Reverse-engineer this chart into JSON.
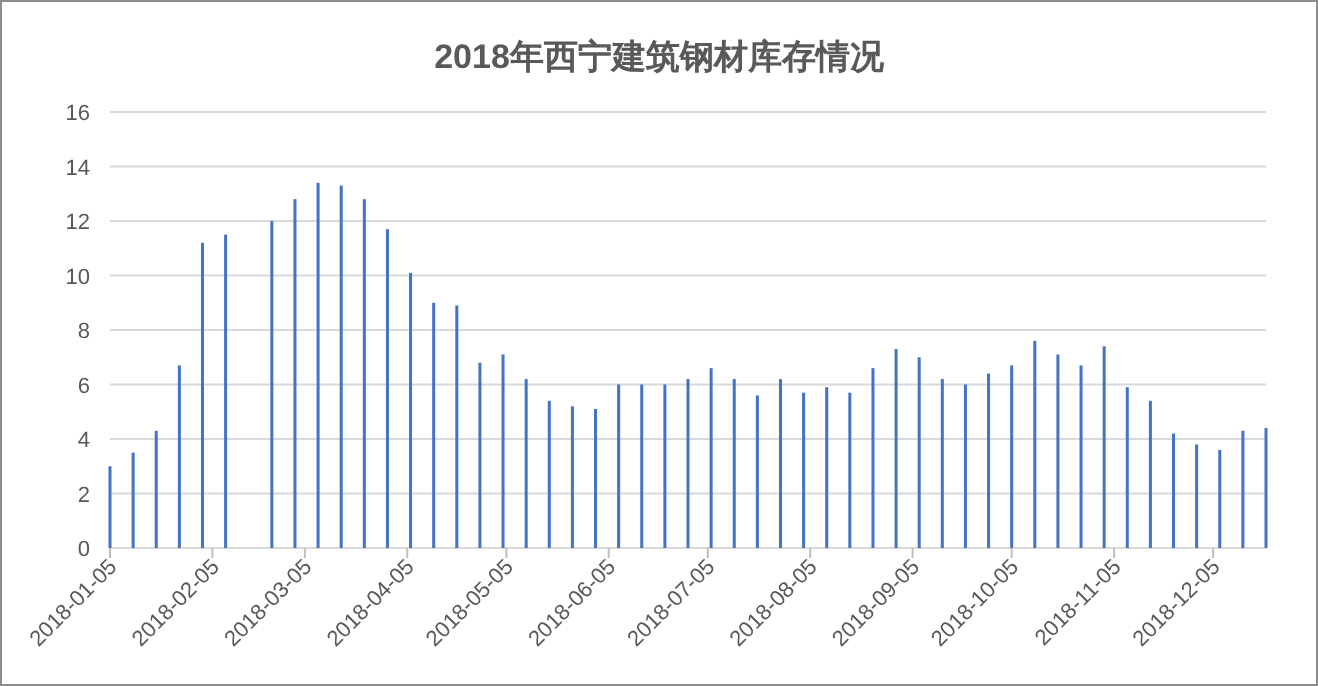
{
  "chart_data": {
    "type": "bar",
    "title": "2018年西宁建筑钢材库存情况",
    "x": [
      "2018-01-05",
      "2018-01-12",
      "2018-01-19",
      "2018-01-26",
      "2018-02-02",
      "2018-02-09",
      "2018-02-23",
      "2018-03-02",
      "2018-03-09",
      "2018-03-16",
      "2018-03-23",
      "2018-03-30",
      "2018-04-06",
      "2018-04-13",
      "2018-04-20",
      "2018-04-27",
      "2018-05-04",
      "2018-05-11",
      "2018-05-18",
      "2018-05-25",
      "2018-06-01",
      "2018-06-08",
      "2018-06-15",
      "2018-06-22",
      "2018-06-29",
      "2018-07-06",
      "2018-07-13",
      "2018-07-20",
      "2018-07-27",
      "2018-08-03",
      "2018-08-10",
      "2018-08-17",
      "2018-08-24",
      "2018-08-31",
      "2018-09-07",
      "2018-09-14",
      "2018-09-21",
      "2018-09-28",
      "2018-10-05",
      "2018-10-12",
      "2018-10-19",
      "2018-10-26",
      "2018-11-02",
      "2018-11-09",
      "2018-11-16",
      "2018-11-23",
      "2018-11-30",
      "2018-12-07",
      "2018-12-14",
      "2018-12-21"
    ],
    "values": [
      3.0,
      3.5,
      4.3,
      6.7,
      11.2,
      11.5,
      12.0,
      12.8,
      13.4,
      13.3,
      12.8,
      11.7,
      10.1,
      9.0,
      8.9,
      6.8,
      7.1,
      6.2,
      5.4,
      5.2,
      5.1,
      6.0,
      6.0,
      6.0,
      6.2,
      6.6,
      6.2,
      5.6,
      6.2,
      5.7,
      5.9,
      5.7,
      6.6,
      7.3,
      7.0,
      6.2,
      6.0,
      6.4,
      6.7,
      7.6,
      7.1,
      6.7,
      7.4,
      5.9,
      5.4,
      4.2,
      3.8,
      3.6,
      4.3,
      4.4
    ],
    "color": "#4472c4",
    "xlim": [
      "2018-01-05",
      "2018-12-21"
    ],
    "xticks": [
      "2018-01-05",
      "2018-02-05",
      "2018-03-05",
      "2018-04-05",
      "2018-05-05",
      "2018-06-05",
      "2018-07-05",
      "2018-08-05",
      "2018-09-05",
      "2018-10-05",
      "2018-11-05",
      "2018-12-05"
    ],
    "ylim": [
      0,
      16
    ],
    "yticks": [
      0,
      2,
      4,
      6,
      8,
      10,
      12,
      14,
      16
    ],
    "grid": "y"
  }
}
